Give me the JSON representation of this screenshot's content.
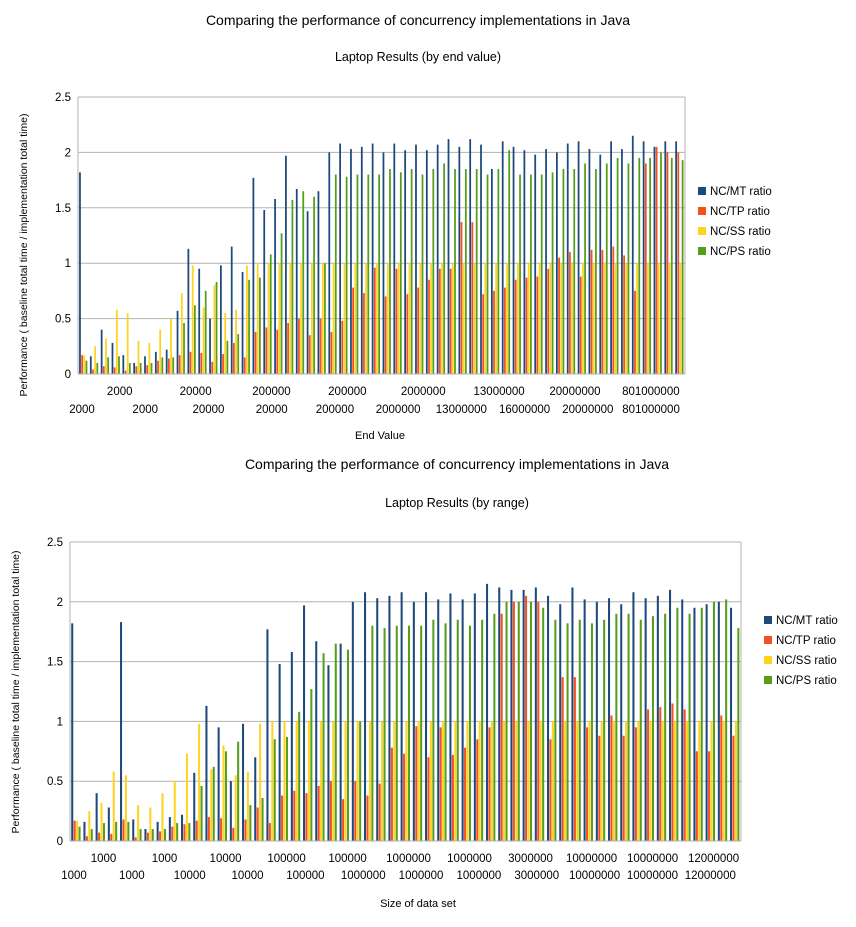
{
  "colors": {
    "NC/MT ratio": "#1f497d",
    "NC/TP ratio": "#f4511e",
    "NC/SS ratio": "#ffd320",
    "NC/PS ratio": "#579d1c",
    "grid": "#b3b3b3",
    "axis": "#b3b3b3"
  },
  "chart_data": [
    {
      "type": "bar",
      "title": "Comparing the performance of concurrency implementations in Java",
      "subtitle": "Laptop Results (by end value)",
      "xlabel": "End Value",
      "ylabel": "Performance ( baseline total time / implementation total time)",
      "ylim": [
        0,
        2.5
      ],
      "yticks": [
        "0",
        "0.5",
        "1",
        "1.5",
        "2",
        "2.5"
      ],
      "grid": true,
      "legend_position": "right",
      "tick_labels_row1": [
        "2000",
        "20000",
        "200000",
        "200000",
        "2000000",
        "13000000",
        "20000000",
        "801000000"
      ],
      "tick_labels_row2": [
        "2000",
        "2000",
        "20000",
        "20000",
        "200000",
        "2000000",
        "13000000",
        "16000000",
        "20000000",
        "801000000"
      ],
      "series": [
        {
          "name": "NC/MT ratio",
          "values": [
            1.82,
            0.16,
            0.4,
            0.28,
            0.17,
            0.1,
            0.16,
            0.2,
            0.22,
            0.57,
            1.13,
            0.95,
            0.5,
            0.98,
            1.15,
            0.92,
            1.77,
            1.48,
            1.58,
            1.97,
            1.67,
            1.47,
            1.65,
            2.0,
            2.08,
            2.03,
            2.05,
            2.08,
            2.0,
            2.08,
            2.02,
            2.07,
            2.02,
            2.07,
            2.12,
            2.05,
            2.12,
            2.07,
            1.85,
            2.1,
            2.05,
            2.02,
            1.98,
            2.03,
            2.0,
            2.08,
            2.1,
            2.03,
            1.98,
            2.1,
            2.03,
            2.15,
            2.1,
            2.05,
            2.1,
            2.1
          ]
        },
        {
          "name": "NC/TP ratio",
          "values": [
            0.17,
            0.04,
            0.07,
            0.06,
            0.03,
            0.07,
            0.08,
            0.12,
            0.14,
            0.17,
            0.2,
            0.19,
            0.11,
            0.18,
            0.28,
            0.15,
            0.38,
            0.42,
            0.4,
            0.46,
            0.5,
            0.35,
            0.5,
            0.38,
            0.48,
            0.78,
            0.73,
            0.96,
            0.7,
            0.95,
            0.72,
            0.78,
            0.85,
            0.95,
            0.95,
            1.37,
            1.37,
            0.72,
            0.75,
            0.78,
            0.85,
            0.87,
            0.88,
            0.95,
            1.05,
            1.1,
            0.88,
            1.12,
            1.12,
            1.15,
            1.07,
            0.75,
            1.9,
            2.05,
            2.0,
            2.0
          ]
        },
        {
          "name": "NC/SS ratio",
          "values": [
            0.17,
            0.25,
            0.32,
            0.58,
            0.55,
            0.3,
            0.28,
            0.4,
            0.5,
            0.73,
            0.98,
            0.6,
            0.8,
            0.55,
            0.58,
            0.98,
            1.0,
            1.0,
            1.0,
            1.0,
            1.0,
            1.0,
            1.0,
            1.0,
            1.0,
            1.0,
            1.0,
            1.0,
            1.0,
            1.0,
            1.0,
            1.0,
            1.0,
            1.0,
            1.0,
            1.0,
            1.0,
            1.0,
            1.0,
            1.0,
            1.0,
            1.0,
            1.0,
            1.0,
            1.0,
            1.0,
            1.0,
            1.0,
            1.0,
            1.0,
            1.0,
            1.0,
            1.0,
            1.0,
            1.0,
            1.0
          ]
        },
        {
          "name": "NC/PS ratio",
          "values": [
            0.12,
            0.1,
            0.15,
            0.16,
            0.1,
            0.1,
            0.1,
            0.15,
            0.15,
            0.46,
            0.62,
            0.75,
            0.83,
            0.3,
            0.36,
            0.85,
            0.87,
            1.08,
            1.27,
            1.57,
            1.65,
            1.6,
            1.0,
            1.8,
            1.78,
            1.8,
            1.8,
            1.8,
            1.85,
            1.82,
            1.85,
            1.8,
            1.85,
            1.9,
            1.85,
            1.85,
            1.85,
            1.8,
            1.85,
            2.02,
            1.8,
            1.8,
            1.8,
            1.82,
            1.85,
            1.85,
            1.9,
            1.85,
            1.9,
            1.95,
            1.9,
            1.95,
            1.95,
            2.0,
            1.95,
            1.93
          ]
        }
      ]
    },
    {
      "type": "bar",
      "title": "Comparing the performance of concurrency implementations in Java",
      "subtitle": "Laptop Results (by range)",
      "xlabel": "Size of data set",
      "ylabel": "Performance ( baseline total time / implementation total time)",
      "ylim": [
        0,
        2.5
      ],
      "yticks": [
        "0",
        "0.5",
        "1",
        "1.5",
        "2",
        "2.5"
      ],
      "grid": true,
      "legend_position": "right",
      "tick_labels_row1": [
        "1000",
        "1000",
        "10000",
        "100000",
        "100000",
        "1000000",
        "1000000",
        "3000000",
        "10000000",
        "10000000",
        "12000000"
      ],
      "tick_labels_row2": [
        "1000",
        "1000",
        "10000",
        "10000",
        "100000",
        "1000000",
        "1000000",
        "1000000",
        "3000000",
        "10000000",
        "10000000",
        "12000000"
      ],
      "series": [
        {
          "name": "NC/MT ratio",
          "values": [
            1.82,
            0.16,
            0.4,
            0.28,
            1.83,
            0.18,
            0.1,
            0.16,
            0.2,
            0.22,
            0.57,
            1.13,
            0.95,
            0.5,
            0.98,
            0.7,
            1.77,
            1.48,
            1.58,
            1.97,
            1.67,
            1.47,
            1.65,
            2.0,
            2.08,
            2.03,
            2.05,
            2.08,
            2.0,
            2.08,
            2.02,
            2.07,
            2.02,
            2.07,
            2.15,
            2.12,
            2.1,
            2.1,
            2.12,
            2.05,
            1.98,
            2.12,
            2.02,
            2.0,
            2.03,
            1.98,
            2.08,
            2.03,
            2.05,
            2.1,
            2.02,
            1.95,
            1.98,
            2.0,
            1.95
          ]
        },
        {
          "name": "NC/TP ratio",
          "values": [
            0.17,
            0.04,
            0.07,
            0.06,
            0.18,
            0.03,
            0.07,
            0.08,
            0.12,
            0.14,
            0.17,
            0.2,
            0.19,
            0.11,
            0.18,
            0.28,
            0.15,
            0.38,
            0.42,
            0.4,
            0.46,
            0.5,
            0.35,
            0.5,
            0.38,
            0.48,
            0.78,
            0.73,
            0.96,
            0.7,
            0.95,
            0.72,
            0.78,
            0.85,
            0.95,
            1.9,
            2.0,
            2.05,
            2.0,
            0.85,
            1.37,
            1.37,
            0.95,
            0.88,
            1.05,
            0.88,
            0.95,
            1.1,
            1.12,
            1.15,
            1.1,
            0.75,
            0.75,
            1.05,
            0.88
          ]
        },
        {
          "name": "NC/SS ratio",
          "values": [
            0.17,
            0.25,
            0.32,
            0.58,
            0.55,
            0.3,
            0.28,
            0.4,
            0.5,
            0.73,
            0.98,
            0.6,
            0.8,
            0.55,
            0.58,
            0.98,
            1.0,
            1.0,
            1.0,
            1.0,
            1.0,
            1.0,
            1.0,
            1.0,
            1.0,
            1.0,
            1.0,
            1.0,
            1.0,
            1.0,
            1.0,
            1.0,
            1.0,
            1.0,
            1.0,
            1.0,
            1.0,
            1.0,
            1.0,
            1.0,
            1.0,
            1.0,
            1.0,
            1.0,
            1.0,
            1.0,
            1.0,
            1.0,
            1.0,
            1.0,
            1.0,
            1.0,
            1.0,
            1.0,
            1.0
          ]
        },
        {
          "name": "NC/PS ratio",
          "values": [
            0.12,
            0.1,
            0.15,
            0.16,
            0.16,
            0.1,
            0.1,
            0.1,
            0.15,
            0.15,
            0.46,
            0.62,
            0.75,
            0.83,
            0.3,
            0.36,
            0.85,
            0.87,
            1.08,
            1.27,
            1.57,
            1.65,
            1.6,
            1.0,
            1.8,
            1.78,
            1.8,
            1.8,
            1.8,
            1.85,
            1.82,
            1.85,
            1.8,
            1.85,
            1.9,
            2.0,
            2.0,
            2.0,
            1.95,
            1.85,
            1.82,
            1.85,
            1.82,
            1.85,
            1.9,
            1.9,
            1.85,
            1.88,
            1.9,
            1.95,
            1.9,
            1.95,
            2.0,
            2.02,
            1.78
          ]
        }
      ]
    }
  ]
}
